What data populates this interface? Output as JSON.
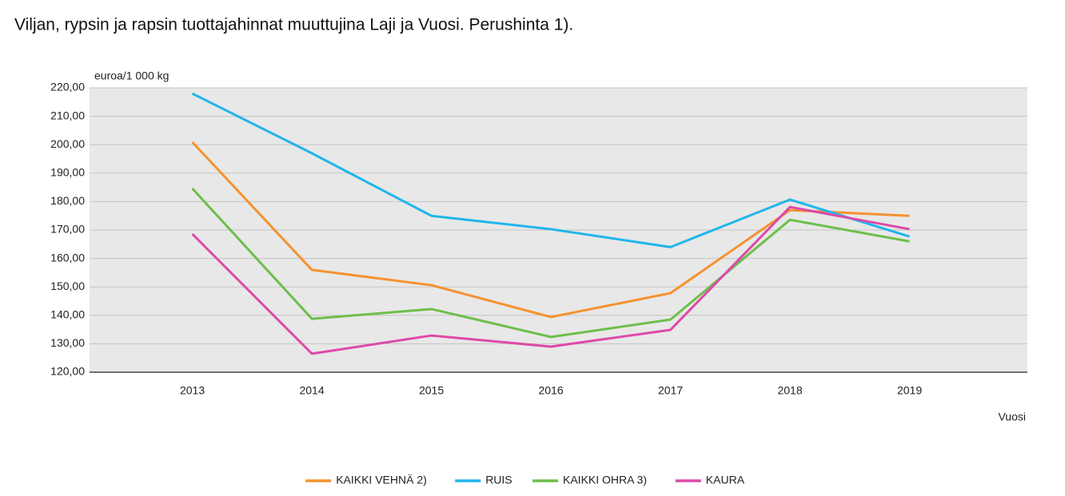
{
  "chart_data": {
    "type": "line",
    "title": "Viljan, rypsin ja rapsin tuottajahinnat muuttujina Laji ja Vuosi. Perushinta 1).",
    "y_label": "euroa/1 000 kg",
    "x_label": "Vuosi",
    "categories": [
      "2013",
      "2014",
      "2015",
      "2016",
      "2017",
      "2018",
      "2019"
    ],
    "series": [
      {
        "name": "KAIKKI VEHNÄ 2)",
        "color": "#f5922f",
        "values": [
          200.9,
          156,
          150.6,
          139.4,
          147.8,
          177,
          175
        ]
      },
      {
        "name": "RUIS",
        "color": "#1fb6ea",
        "values": [
          218,
          197,
          175,
          170.3,
          164,
          180.7,
          167.7
        ]
      },
      {
        "name": "KAIKKI OHRA 3)",
        "color": "#6dbf4b",
        "values": [
          184.6,
          138.8,
          142.2,
          132.4,
          138.5,
          173.6,
          166
        ]
      },
      {
        "name": "KAURA",
        "color": "#dd4aa8",
        "values": [
          168.6,
          126.5,
          132.9,
          129,
          134.9,
          178.1,
          170.3
        ]
      }
    ],
    "ylim": [
      120,
      220
    ],
    "yticks": [
      {
        "value": 120,
        "label": "120,00"
      },
      {
        "value": 130,
        "label": "130,00"
      },
      {
        "value": 140,
        "label": "140,00"
      },
      {
        "value": 150,
        "label": "150,00"
      },
      {
        "value": 160,
        "label": "160,00"
      },
      {
        "value": 170,
        "label": "170,00"
      },
      {
        "value": 180,
        "label": "180,00"
      },
      {
        "value": 190,
        "label": "190,00"
      },
      {
        "value": 200,
        "label": "200,00"
      },
      {
        "value": 210,
        "label": "210,00"
      },
      {
        "value": 220,
        "label": "220,00"
      }
    ],
    "grid": true,
    "legend": "bottom"
  }
}
